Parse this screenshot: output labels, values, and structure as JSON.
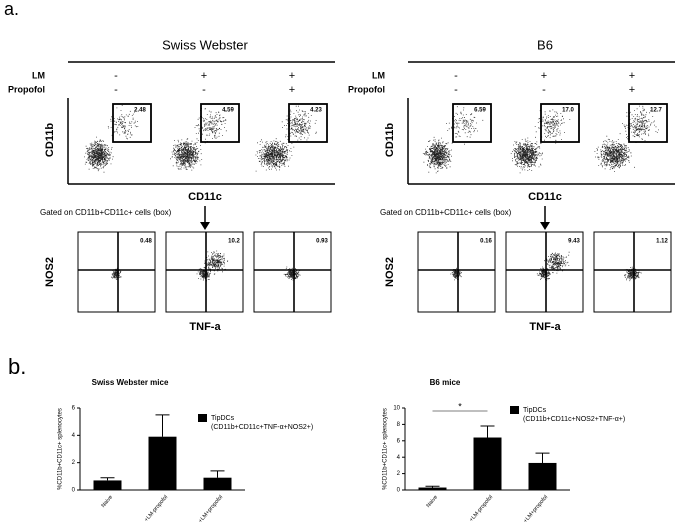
{
  "panel_a": {
    "label": "a.",
    "row_labels": [
      "LM",
      "Propofol"
    ],
    "gating_note": "Gated on CD11b+CD11c+ cells (box)",
    "groups": [
      {
        "title": "Swiss Webster",
        "lm": [
          "-",
          "+",
          "+"
        ],
        "propofol": [
          "-",
          "-",
          "+"
        ],
        "top_y_label": "CD11b",
        "top_x_label": "CD11c",
        "bottom_y_label": "NOS2",
        "bottom_x_label": "TNF-a",
        "gates_top": [
          "2.48",
          "4.59",
          "4.23"
        ],
        "gates_bottom": [
          "0.48",
          "10.2",
          "0.93"
        ]
      },
      {
        "title": "B6",
        "lm": [
          "-",
          "+",
          "+"
        ],
        "propofol": [
          "-",
          "-",
          "+"
        ],
        "top_y_label": "CD11b",
        "top_x_label": "CD11c",
        "bottom_y_label": "NOS2",
        "bottom_x_label": "TNF-a",
        "gates_top": [
          "6.59",
          "17.0",
          "12.7"
        ],
        "gates_bottom": [
          "0.16",
          "9.43",
          "1.12"
        ]
      }
    ]
  },
  "panel_b": {
    "label": "b."
  },
  "chart_data": [
    {
      "type": "bar",
      "title": "Swiss Webster mice",
      "y_label": "%CD11b+CD11c+ splenocytes",
      "categories": [
        "Naive",
        "+LM-propofol",
        "+LM+propofol"
      ],
      "series": [
        {
          "name": "TipDCs",
          "note": "(CD11b+CD11c+TNF-α+NOS2+)",
          "color": "#000000",
          "values": [
            0.7,
            3.9,
            0.9
          ],
          "errors": [
            0.2,
            1.6,
            0.5
          ]
        }
      ],
      "ylim": [
        0,
        6
      ],
      "yticks": [
        0,
        2,
        4,
        6
      ]
    },
    {
      "type": "bar",
      "title": "B6 mice",
      "y_label": "%CD11b+CD11c+ splenocytes",
      "categories": [
        "Naive",
        "+LM-propofol",
        "+LM+propofol"
      ],
      "series": [
        {
          "name": "TipDCs",
          "note": "(CD11b+CD11c+NOS2+TNF-α+)",
          "color": "#000000",
          "values": [
            0.3,
            6.4,
            3.3
          ],
          "errors": [
            0.15,
            1.4,
            1.2
          ]
        }
      ],
      "ylim": [
        0,
        10
      ],
      "yticks": [
        0,
        2,
        4,
        6,
        8,
        10
      ],
      "annotations": [
        {
          "text": "*",
          "from": 0,
          "to": 1
        }
      ]
    }
  ]
}
